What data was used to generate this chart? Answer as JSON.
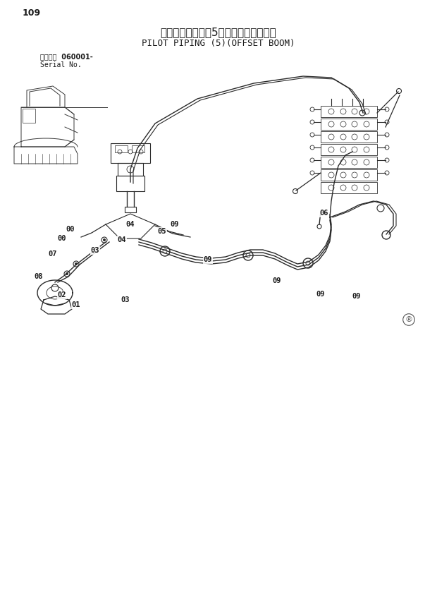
{
  "page_number": "109",
  "title_japanese": "パイロット配管（5）（側溝掘ブーム）",
  "title_english": "PILOT PIPING (5)(OFFSET BOOM)",
  "serial_label_japanese": "適用号機",
  "serial_number": "060001-",
  "serial_label_english": "Serial No.",
  "bg_color": "#ffffff",
  "text_color": "#1a1a1a",
  "line_color": "#2a2a2a",
  "watermark": "®",
  "label_positions": [
    [
      "00",
      100,
      325
    ],
    [
      "00",
      88,
      338
    ],
    [
      "04",
      185,
      318
    ],
    [
      "04",
      173,
      340
    ],
    [
      "05",
      230,
      328
    ],
    [
      "09",
      248,
      318
    ],
    [
      "09",
      295,
      368
    ],
    [
      "09",
      393,
      398
    ],
    [
      "09",
      455,
      417
    ],
    [
      "09",
      506,
      420
    ],
    [
      "07",
      75,
      360
    ],
    [
      "03",
      135,
      355
    ],
    [
      "03",
      178,
      425
    ],
    [
      "08",
      55,
      392
    ],
    [
      "02",
      88,
      418
    ],
    [
      "01",
      108,
      432
    ],
    [
      "06",
      460,
      302
    ]
  ]
}
